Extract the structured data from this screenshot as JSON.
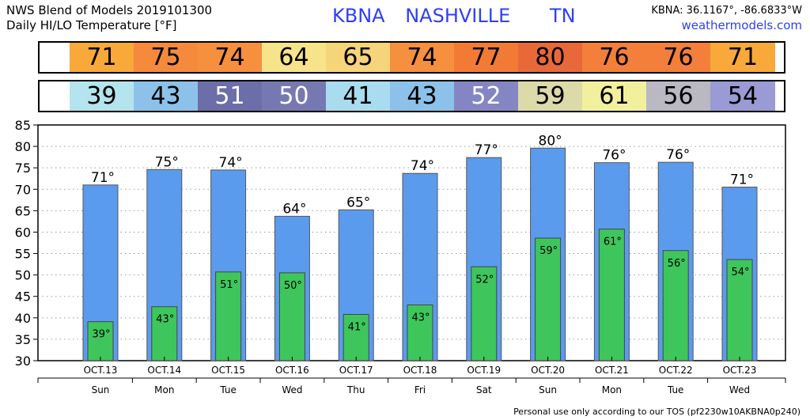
{
  "header": {
    "line1": "NWS Blend of Models 2019101300",
    "line2": "Daily HI/LO Temperature [°F]",
    "station_id": "KBNA",
    "city": "NASHVILLE",
    "state": "TN",
    "coords": "KBNA: 36.1167°, -86.6833°W",
    "site": "weathermodels.com"
  },
  "highs_strip": [
    {
      "value": "71",
      "color": "#f9a83a"
    },
    {
      "value": "75",
      "color": "#f68a3c"
    },
    {
      "value": "74",
      "color": "#f68f3e"
    },
    {
      "value": "64",
      "color": "#f7e48a"
    },
    {
      "value": "65",
      "color": "#f6d47a"
    },
    {
      "value": "74",
      "color": "#f68f3e"
    },
    {
      "value": "77",
      "color": "#f37a35"
    },
    {
      "value": "80",
      "color": "#e8683a"
    },
    {
      "value": "76",
      "color": "#f37f3a"
    },
    {
      "value": "76",
      "color": "#f37f3a"
    },
    {
      "value": "71",
      "color": "#f9a83a"
    }
  ],
  "lows_strip": [
    {
      "value": "39",
      "color": "#b4e4ee",
      "text_color": "#000000"
    },
    {
      "value": "43",
      "color": "#8cc2ea",
      "text_color": "#000000"
    },
    {
      "value": "51",
      "color": "#6b6ea8",
      "text_color": "#ffffff"
    },
    {
      "value": "50",
      "color": "#7679b1",
      "text_color": "#ffffff"
    },
    {
      "value": "41",
      "color": "#a9dcef",
      "text_color": "#000000"
    },
    {
      "value": "43",
      "color": "#8cc2ea",
      "text_color": "#000000"
    },
    {
      "value": "52",
      "color": "#8486c4",
      "text_color": "#ffffff"
    },
    {
      "value": "59",
      "color": "#dcdaa8",
      "text_color": "#000000"
    },
    {
      "value": "61",
      "color": "#f3f09d",
      "text_color": "#000000"
    },
    {
      "value": "56",
      "color": "#b9b8c3",
      "text_color": "#000000"
    },
    {
      "value": "54",
      "color": "#9a9ad4",
      "text_color": "#000000"
    }
  ],
  "chart_data": {
    "type": "bar",
    "categories": [
      "OCT.13",
      "OCT.14",
      "OCT.15",
      "OCT.16",
      "OCT.17",
      "OCT.18",
      "OCT.19",
      "OCT.20",
      "OCT.21",
      "OCT.22",
      "OCT.23"
    ],
    "weekdays": [
      "Sun",
      "Mon",
      "Tue",
      "Wed",
      "Thu",
      "Fri",
      "Sat",
      "Sun",
      "Mon",
      "Tue",
      "Wed"
    ],
    "series": [
      {
        "values": [
          71,
          74.6,
          74.5,
          63.7,
          65.2,
          73.7,
          77.4,
          79.6,
          76.2,
          76.3,
          70.5
        ],
        "labels": [
          "71°",
          "75°",
          "74°",
          "64°",
          "65°",
          "74°",
          "77°",
          "80°",
          "76°",
          "76°",
          "71°"
        ],
        "color": "#5b9bee"
      },
      {
        "values": [
          39.1,
          42.6,
          50.7,
          50.5,
          40.8,
          43.0,
          51.9,
          58.6,
          60.7,
          55.7,
          53.6
        ],
        "labels": [
          "39°",
          "43°",
          "51°",
          "50°",
          "41°",
          "43°",
          "52°",
          "59°",
          "61°",
          "56°",
          "54°"
        ],
        "color": "#3ec65c"
      }
    ],
    "ylim": [
      30,
      85
    ],
    "yticks": [
      "30",
      "35",
      "40",
      "45",
      "50",
      "55",
      "60",
      "65",
      "70",
      "75",
      "80",
      "85"
    ],
    "grid": true
  },
  "footer": "Personal use only according to our TOS (pf2230w10AKBNA0p240)"
}
